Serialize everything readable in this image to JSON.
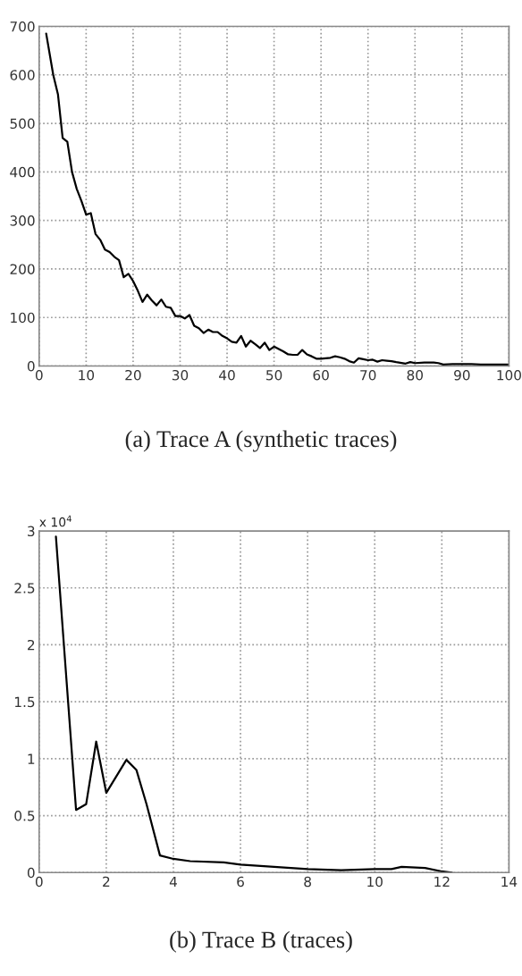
{
  "chart_data": [
    {
      "type": "line",
      "annotations": [
        "(a) Trace A (synthetic traces)"
      ],
      "grid": true,
      "series": [
        {
          "color": "#000000",
          "x": [
            1.5,
            3,
            4,
            5,
            6,
            7,
            8,
            9,
            10,
            11,
            12,
            13,
            14,
            15,
            16,
            17,
            18,
            19,
            20,
            21,
            22,
            23,
            24,
            25,
            26,
            27,
            28,
            29,
            30,
            31,
            32,
            33,
            34,
            35,
            36,
            37,
            38,
            39,
            40,
            41,
            42,
            43,
            44,
            45,
            46,
            47,
            48,
            49,
            50,
            51,
            52,
            53,
            54,
            55,
            56,
            57,
            58,
            59,
            60,
            61,
            62,
            63,
            64,
            65,
            66,
            67,
            68,
            69,
            70,
            71,
            72,
            73,
            74,
            75,
            76,
            78,
            79,
            80,
            82,
            84,
            85,
            86,
            88,
            90,
            92,
            94,
            96,
            98,
            100
          ],
          "values": [
            685,
            600,
            560,
            470,
            462,
            400,
            365,
            340,
            312,
            315,
            272,
            260,
            240,
            235,
            225,
            218,
            183,
            190,
            175,
            155,
            132,
            147,
            135,
            125,
            137,
            122,
            120,
            103,
            103,
            98,
            105,
            83,
            78,
            68,
            75,
            70,
            70,
            62,
            57,
            50,
            48,
            62,
            40,
            52,
            45,
            37,
            48,
            33,
            40,
            35,
            30,
            24,
            23,
            23,
            33,
            24,
            20,
            15,
            15,
            16,
            17,
            20,
            18,
            15,
            10,
            7,
            16,
            14,
            12,
            13,
            9,
            12,
            11,
            10,
            8,
            5,
            8,
            6,
            7,
            7,
            6,
            3,
            4,
            4,
            4,
            3,
            3,
            3,
            3
          ]
        }
      ],
      "xlim": [
        0,
        100
      ],
      "xticks": [
        0,
        10,
        20,
        30,
        40,
        50,
        60,
        70,
        80,
        90,
        100
      ],
      "ylim": [
        0,
        700
      ],
      "yticks": [
        0,
        100,
        200,
        300,
        400,
        500,
        600,
        700
      ]
    },
    {
      "type": "line",
      "annotations": [
        "x 10$^{4}$",
        "(b) Trace B (traces)"
      ],
      "grid": true,
      "series": [
        {
          "color": "#000000",
          "x": [
            0.5,
            1.1,
            1.4,
            1.7,
            2.0,
            2.6,
            2.9,
            3.2,
            3.6,
            4.0,
            4.5,
            5.5,
            6.0,
            7.0,
            8.0,
            9.0,
            10.0,
            10.5,
            10.8,
            11.5,
            12.0,
            12.3
          ],
          "values": [
            2.95,
            0.55,
            0.6,
            1.15,
            0.7,
            0.99,
            0.9,
            0.6,
            0.15,
            0.12,
            0.1,
            0.09,
            0.07,
            0.05,
            0.03,
            0.02,
            0.03,
            0.03,
            0.05,
            0.04,
            0.01,
            0.0
          ]
        }
      ],
      "xlim": [
        0,
        14
      ],
      "xticks": [
        0,
        2,
        4,
        6,
        8,
        10,
        12,
        14
      ],
      "ylim": [
        0,
        3
      ],
      "yticks": [
        0,
        0.5,
        1,
        1.5,
        2,
        2.5,
        3
      ]
    }
  ]
}
